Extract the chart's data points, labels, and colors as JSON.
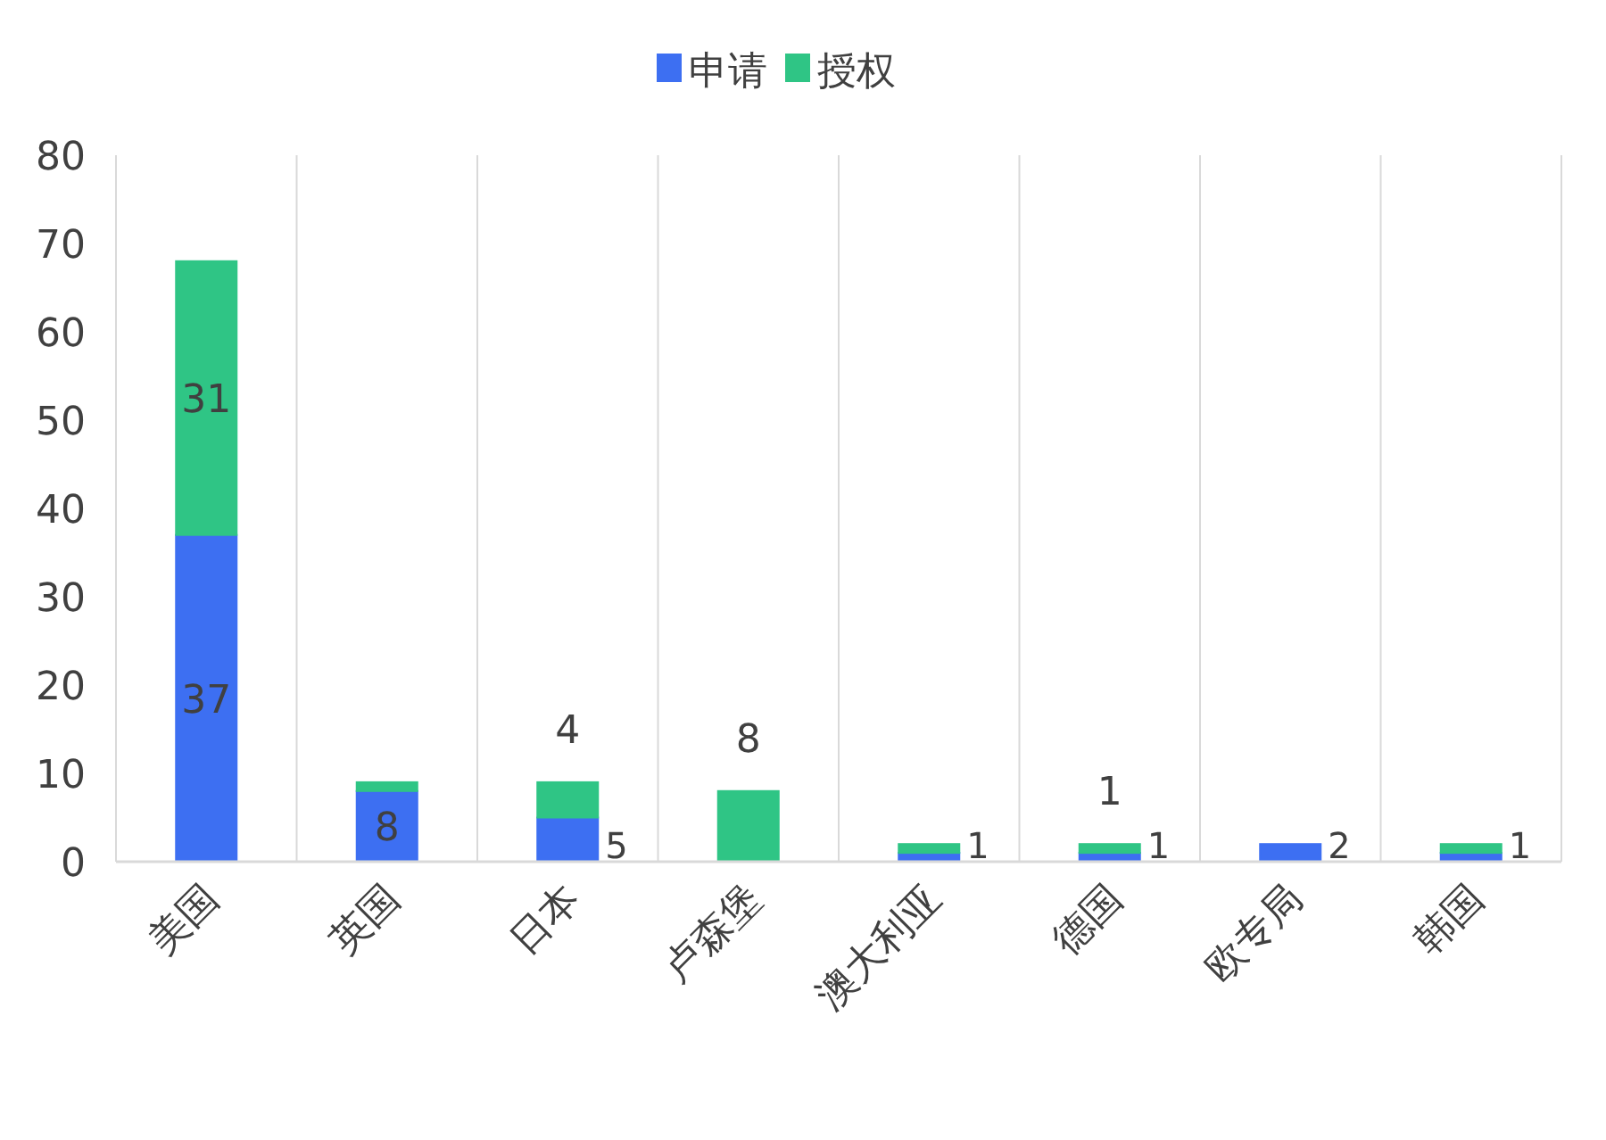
{
  "chart_data": {
    "type": "bar",
    "stacked": true,
    "categories": [
      "美国",
      "英国",
      "日本",
      "卢森堡",
      "澳大利亚",
      "德国",
      "欧专局",
      "韩国"
    ],
    "series": [
      {
        "name": "申请",
        "color": "#3d6ff2",
        "values": [
          37,
          8,
          5,
          0,
          1,
          1,
          2,
          1
        ],
        "value_labels": [
          "37",
          "8",
          "5",
          null,
          "1",
          "1",
          "2",
          "1"
        ]
      },
      {
        "name": "授权",
        "color": "#2fc585",
        "values": [
          31,
          1,
          4,
          8,
          1,
          1,
          0,
          1
        ],
        "value_labels": [
          "31",
          null,
          "4",
          "8",
          null,
          "1",
          null,
          null
        ]
      }
    ],
    "ylim": [
      0,
      80
    ],
    "yticks": [
      0,
      10,
      20,
      30,
      40,
      50,
      60,
      70,
      80
    ],
    "grid": "x",
    "legend": "top"
  }
}
